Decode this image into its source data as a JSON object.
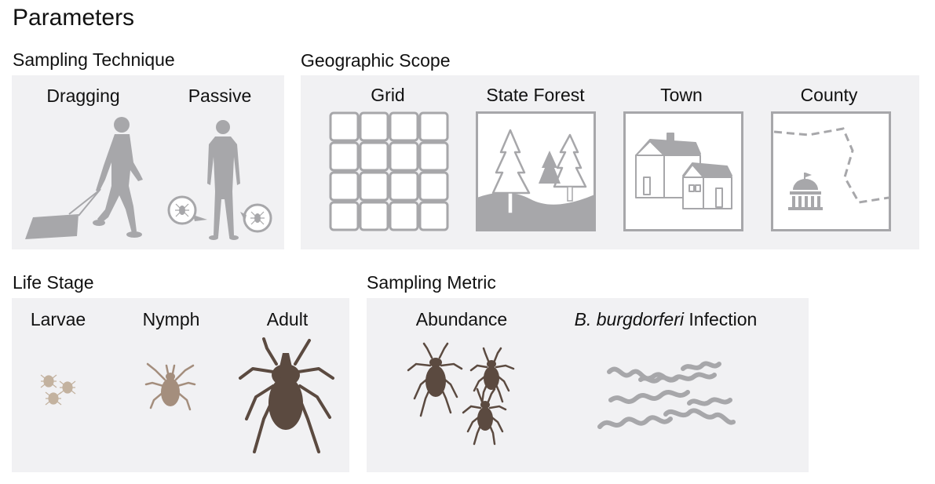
{
  "title": "Parameters",
  "sections": {
    "sampling_technique": {
      "title": "Sampling Technique",
      "items": [
        "Dragging",
        "Passive"
      ]
    },
    "geographic_scope": {
      "title": "Geographic Scope",
      "items": [
        "Grid",
        "State Forest",
        "Town",
        "County"
      ]
    },
    "life_stage": {
      "title": "Life Stage",
      "items": [
        "Larvae",
        "Nymph",
        "Adult"
      ]
    },
    "sampling_metric": {
      "title": "Sampling Metric",
      "items": [
        "Abundance"
      ],
      "infection": {
        "species": "B. burgdorferi",
        "suffix": " Infection"
      }
    }
  },
  "colors": {
    "panel": "#f1f1f3",
    "icon_gray": "#a7a7aa",
    "larvae": "#c3b29f",
    "nymph": "#a48e7d",
    "adult": "#5b4a40"
  }
}
